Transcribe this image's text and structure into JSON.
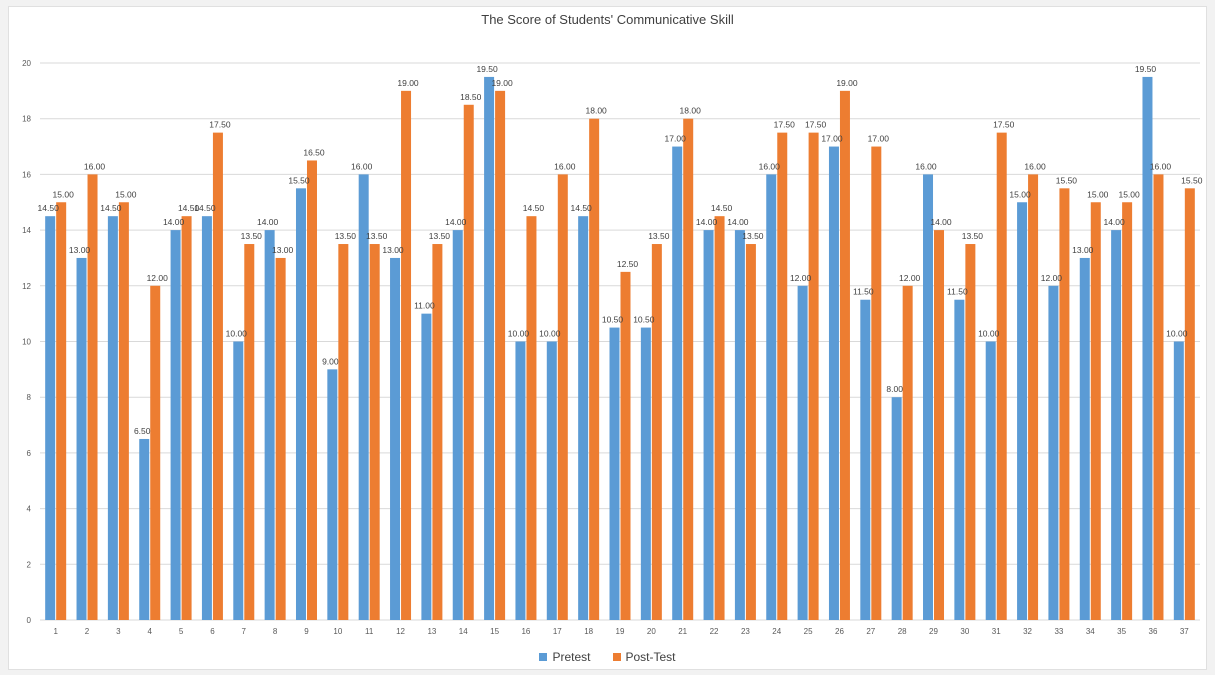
{
  "chart_data": {
    "type": "bar",
    "title": "The Score of Students' Communicative Skill",
    "xlabel": "",
    "ylabel": "",
    "ylim": [
      0,
      20
    ],
    "yticks": [
      0,
      2,
      4,
      6,
      8,
      10,
      12,
      14,
      16,
      18,
      20
    ],
    "grid": true,
    "legend_position": "bottom",
    "categories": [
      "1",
      "2",
      "3",
      "4",
      "5",
      "6",
      "7",
      "8",
      "9",
      "10",
      "11",
      "12",
      "13",
      "14",
      "15",
      "16",
      "17",
      "18",
      "19",
      "20",
      "21",
      "22",
      "23",
      "24",
      "25",
      "26",
      "27",
      "28",
      "29",
      "30",
      "31",
      "32",
      "33",
      "34",
      "35",
      "36",
      "37"
    ],
    "series": [
      {
        "name": "Pretest",
        "color": "#5b9bd5",
        "values": [
          14.5,
          13,
          14.5,
          6.5,
          14,
          14.5,
          10,
          14,
          15.5,
          9,
          16,
          13,
          11,
          14,
          19.5,
          10,
          10,
          14.5,
          10.5,
          10.5,
          17,
          14,
          14,
          16,
          12,
          17,
          11.5,
          8,
          16,
          11.5,
          10,
          15,
          12,
          13,
          14,
          19.5,
          10
        ],
        "labels": [
          "14.50",
          "13.00",
          "14.50",
          "6.50",
          "14.00",
          "14.50",
          "10.00",
          "14.00",
          "15.50",
          "9.00",
          "16.00",
          "13.00",
          "11.00",
          "14.00",
          "19.50",
          "10.00",
          "10.00",
          "14.50",
          "10.50",
          "10.50",
          "17.00",
          "14.00",
          "14.00",
          "16.00",
          "12.00",
          "17.00",
          "11.50",
          "8.00",
          "16.00",
          "11.50",
          "10.00",
          "15.00",
          "12.00",
          "13.00",
          "14.00",
          "19.50",
          "10.00"
        ]
      },
      {
        "name": "Post-Test",
        "color": "#ed7d31",
        "values": [
          15,
          16,
          15,
          12,
          14.5,
          17.5,
          13.5,
          13,
          16.5,
          13.5,
          13.5,
          19,
          13.5,
          18.5,
          19,
          14.5,
          16,
          18,
          12.5,
          13.5,
          18,
          14.5,
          13.5,
          17.5,
          17.5,
          19,
          17,
          12,
          14,
          13.5,
          17.5,
          16,
          15.5,
          15,
          15,
          16,
          15.5
        ],
        "labels": [
          "15.00",
          "16.00",
          "15.00",
          "12.00",
          "14.50",
          "17.50",
          "13.50",
          "13.00",
          "16.50",
          "13.50",
          "13.50",
          "19.00",
          "13.50",
          "18.50",
          "19.00",
          "14.50",
          "16.00",
          "18.00",
          "12.50",
          "13.50",
          "18.00",
          "14.50",
          "13.50",
          "17.50",
          "17.50",
          "19.00",
          "17.00",
          "12.00",
          "14.00",
          "13.50",
          "17.50",
          "16.00",
          "15.50",
          "15.00",
          "15.00",
          "16.00",
          "15.50"
        ]
      }
    ]
  }
}
